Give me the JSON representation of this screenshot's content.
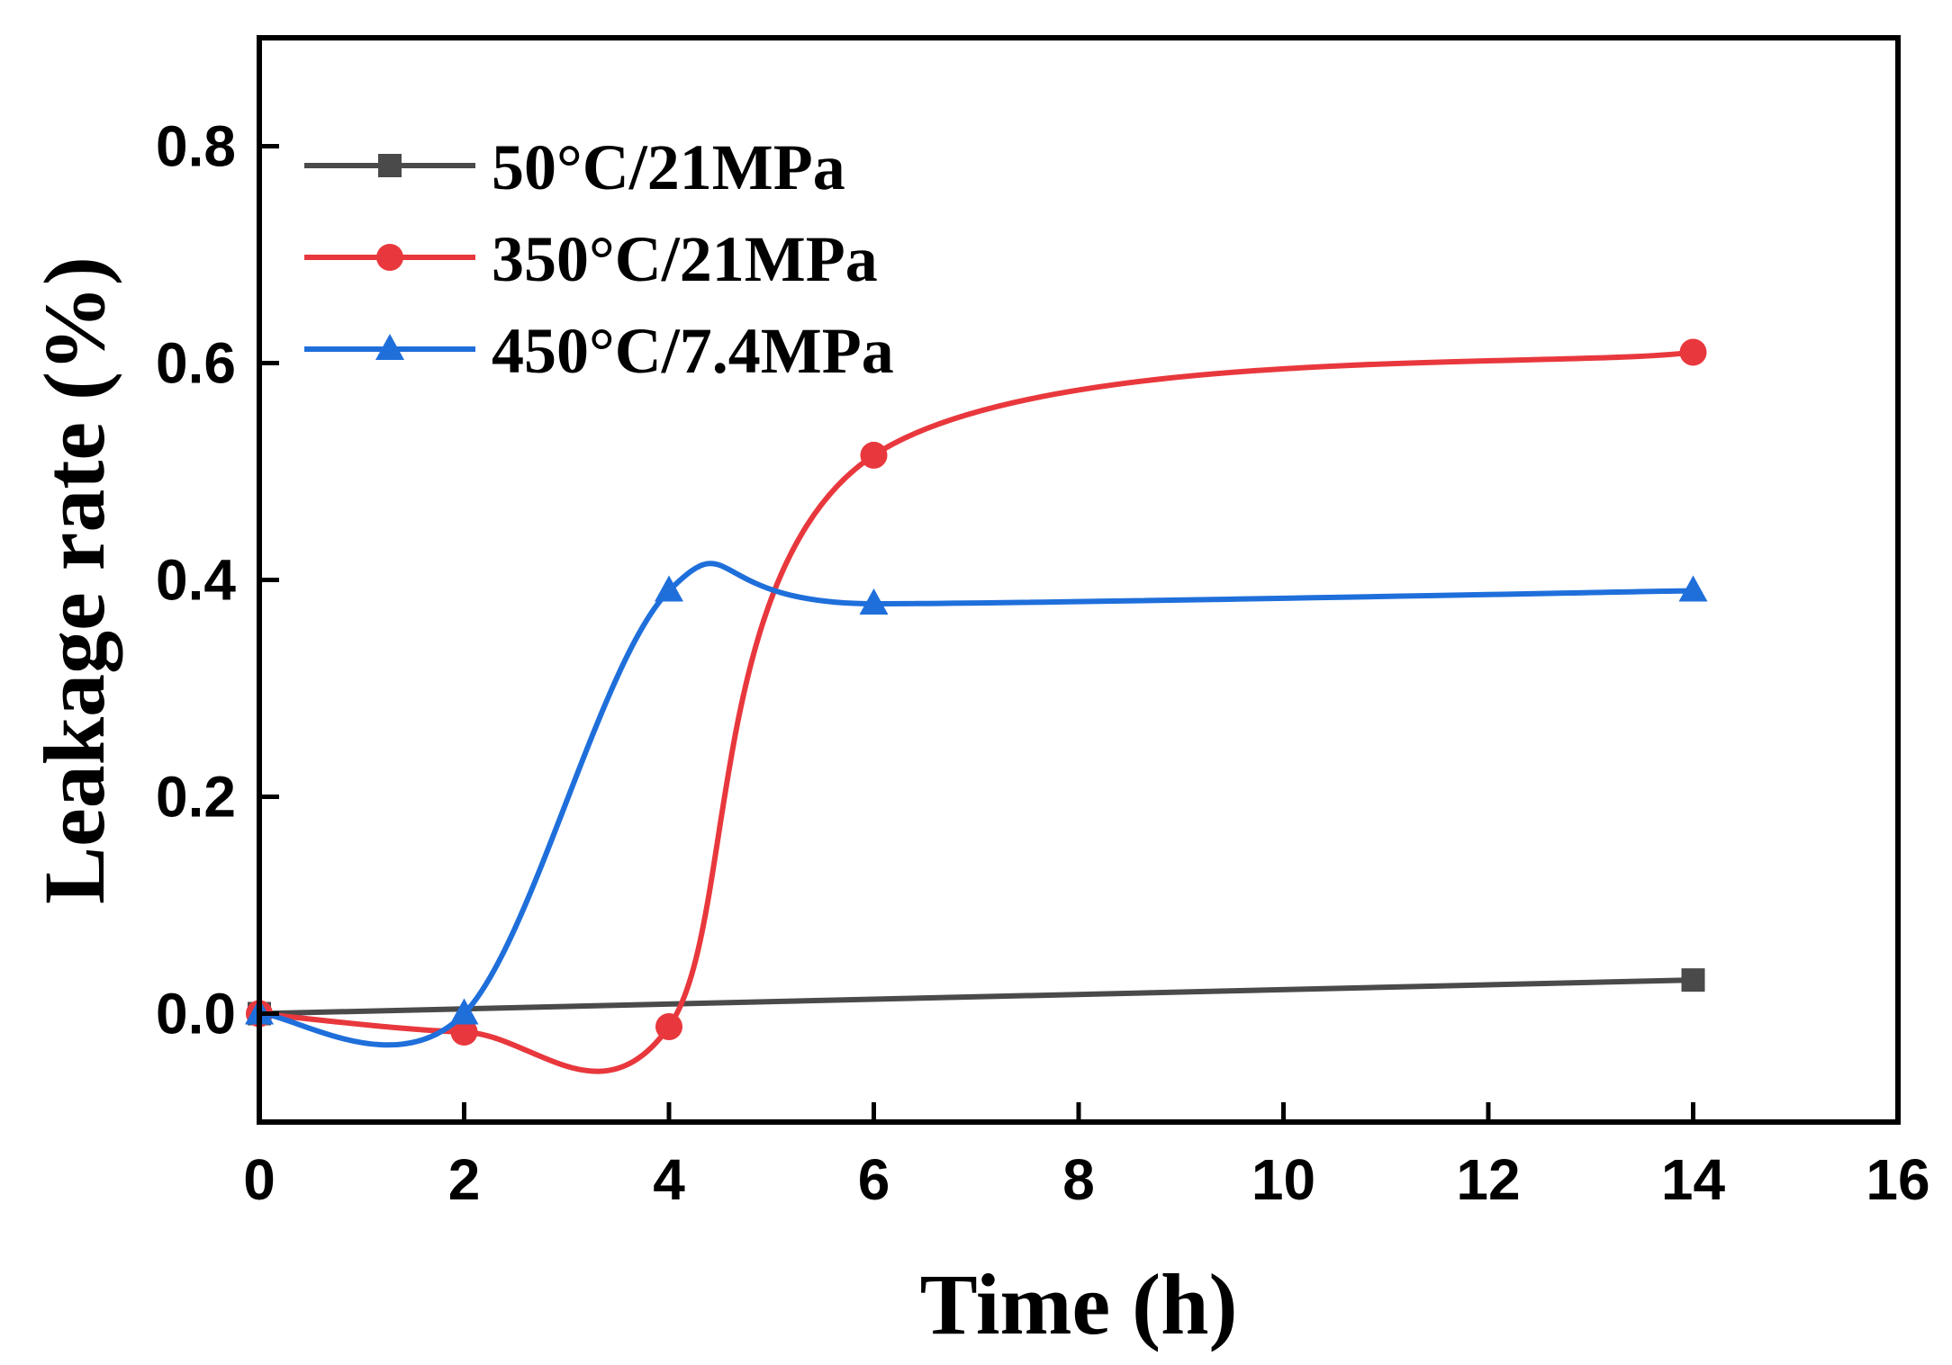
{
  "chart_data": {
    "type": "line",
    "title": "",
    "xlabel": "Time (h)",
    "ylabel": "Leakage rate (%)",
    "xlim": [
      0,
      16
    ],
    "ylim": [
      -0.1,
      0.9
    ],
    "xticks": [
      0,
      2,
      4,
      6,
      8,
      10,
      12,
      14,
      16
    ],
    "yticks": [
      0.0,
      0.2,
      0.4,
      0.6,
      0.8
    ],
    "xtick_labels": [
      "0",
      "2",
      "4",
      "6",
      "8",
      "10",
      "12",
      "14",
      "16"
    ],
    "ytick_labels": [
      "0.0",
      "0.2",
      "0.4",
      "0.6",
      "0.8"
    ],
    "grid": false,
    "legend_position": "top-left",
    "series": [
      {
        "name": "50°C/21MPa",
        "color": "#4a4a4a",
        "marker": "square",
        "smooth": false,
        "x": [
          0,
          14
        ],
        "y": [
          0.0,
          0.031
        ]
      },
      {
        "name": "350°C/21MPa",
        "color": "#e8383d",
        "marker": "circle",
        "smooth": true,
        "x": [
          0,
          2,
          4,
          6,
          14
        ],
        "y": [
          0.0,
          -0.017,
          -0.012,
          0.515,
          0.61
        ]
      },
      {
        "name": "450°C/7.4MPa",
        "color": "#1f6fdb",
        "marker": "triangle",
        "smooth": true,
        "x": [
          0,
          2,
          4,
          6,
          14
        ],
        "y": [
          0.0,
          0.0,
          0.39,
          0.378,
          0.39
        ]
      }
    ]
  }
}
